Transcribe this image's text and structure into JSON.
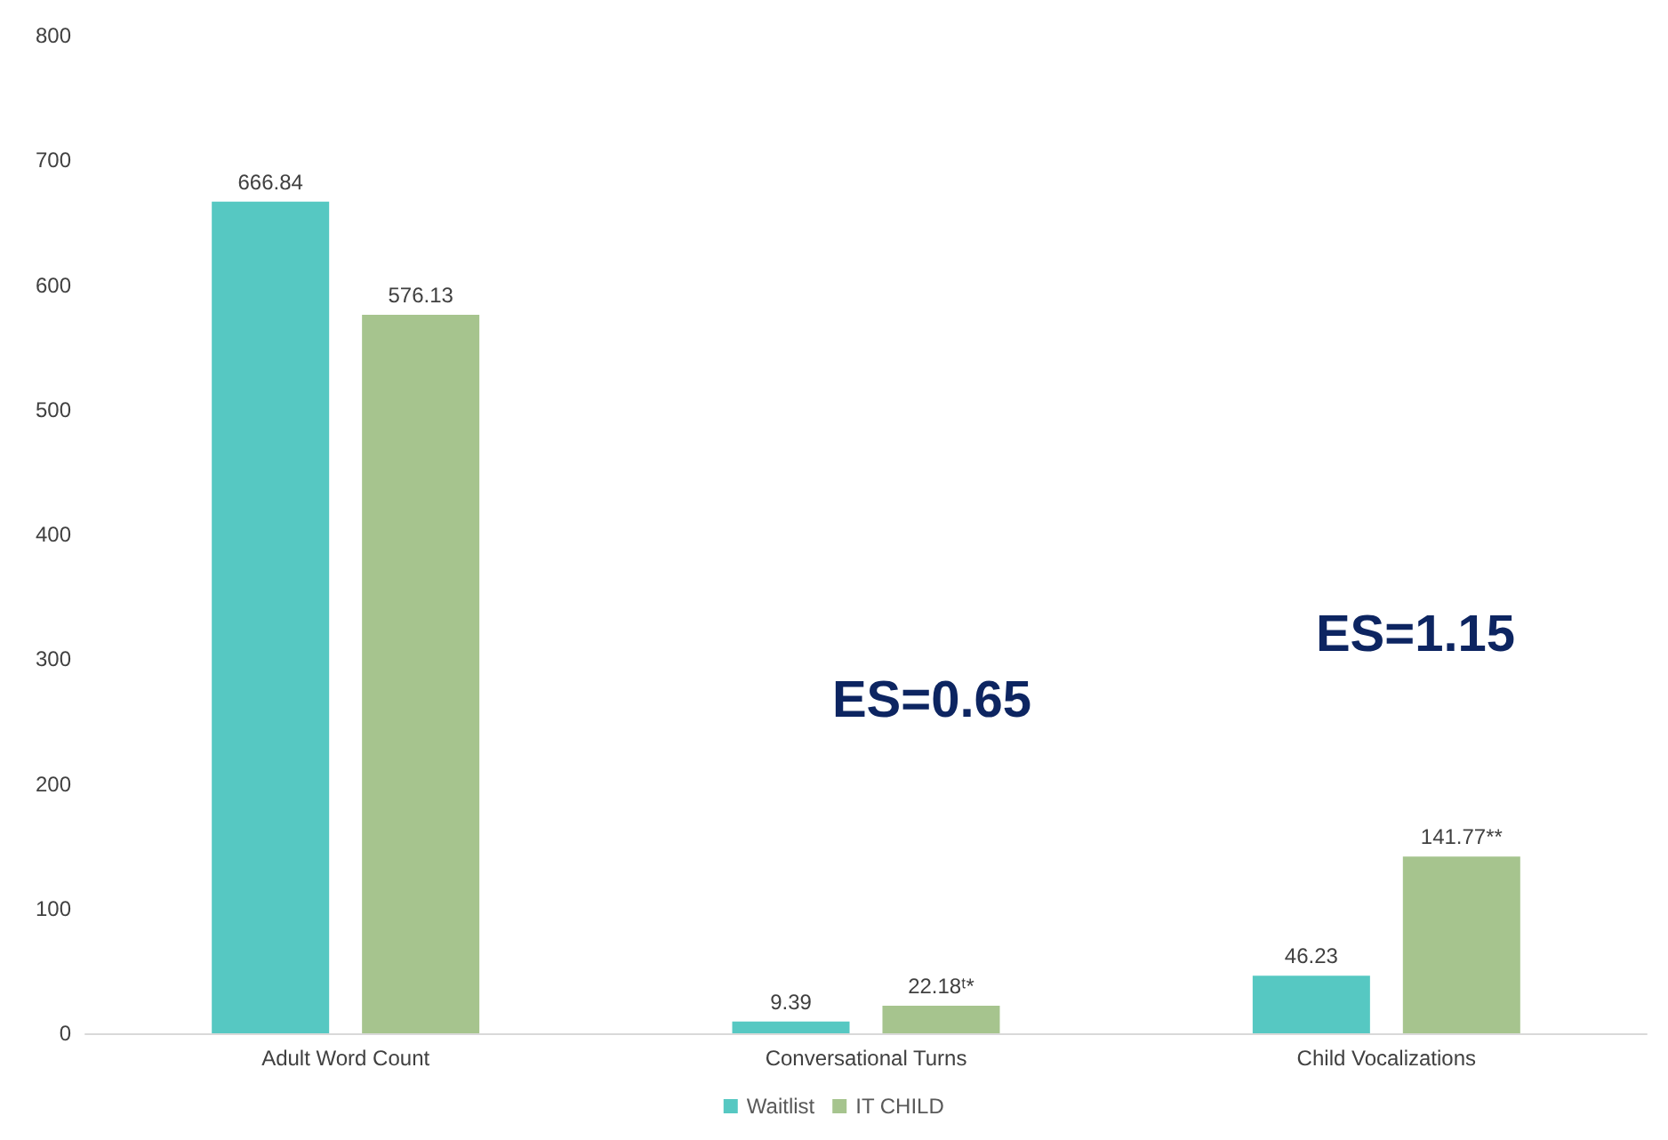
{
  "chart_data": {
    "type": "bar",
    "categories": [
      "Adult Word Count",
      "Conversational Turns",
      "Child Vocalizations"
    ],
    "series": [
      {
        "name": "Waitlist",
        "color": "#56c8c2",
        "values": [
          666.84,
          9.39,
          46.23
        ],
        "value_labels": [
          "666.84",
          "9.39",
          "46.23"
        ]
      },
      {
        "name": "IT CHILD",
        "color": "#a6c48e",
        "values": [
          576.13,
          22.18,
          141.77
        ],
        "value_labels": [
          "576.13",
          "22.18ᵗ*",
          "141.77**"
        ]
      }
    ],
    "ylim": [
      0,
      800
    ],
    "yticks": [
      0,
      100,
      200,
      300,
      400,
      500,
      600,
      700,
      800
    ],
    "grid": false,
    "legend": "bottom",
    "annotations": [
      "ES=0.65",
      "ES=1.15"
    ]
  }
}
